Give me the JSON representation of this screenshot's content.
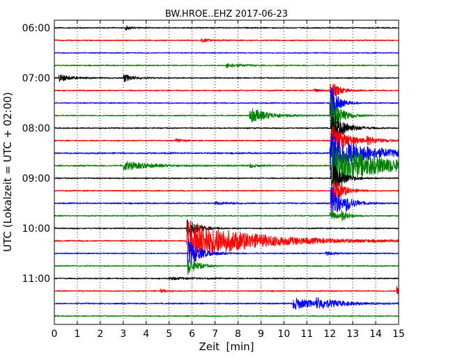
{
  "chart_data": {
    "type": "line",
    "title": "BW.HROE..EHZ 2017-06-23",
    "xlabel": "Zeit  [min]",
    "ylabel": "UTC (Lokalzeit = UTC + 02:00)",
    "xlim": [
      0,
      15
    ],
    "x_ticks": [
      "0",
      "1",
      "2",
      "3",
      "4",
      "5",
      "6",
      "7",
      "8",
      "9",
      "10",
      "11",
      "12",
      "13",
      "14",
      "15"
    ],
    "y_ticks": [
      "06:00",
      "07:00",
      "08:00",
      "09:00",
      "10:00",
      "11:00"
    ],
    "grid": true,
    "traces_per_hour": 4,
    "trace_colors": [
      "#000000",
      "#ff0000",
      "#0000ff",
      "#008000"
    ],
    "traces": [
      {
        "start": "06:00",
        "noise": 0.35,
        "events": [
          {
            "t": 3.1,
            "amp": 1.2,
            "dur": 0.3
          }
        ]
      },
      {
        "start": "06:15",
        "noise": 0.35,
        "events": [
          {
            "t": 6.4,
            "amp": 1.0,
            "dur": 0.5
          }
        ]
      },
      {
        "start": "06:30",
        "noise": 0.3,
        "events": []
      },
      {
        "start": "06:45",
        "noise": 0.35,
        "events": [
          {
            "t": 7.5,
            "amp": 1.6,
            "dur": 0.6
          }
        ]
      },
      {
        "start": "07:00",
        "noise": 0.35,
        "events": [
          {
            "t": 0.2,
            "amp": 2.4,
            "dur": 0.5
          },
          {
            "t": 3.0,
            "amp": 2.6,
            "dur": 0.4
          }
        ]
      },
      {
        "start": "07:15",
        "noise": 0.35,
        "events": [
          {
            "t": 11.3,
            "amp": 1.0,
            "dur": 0.3
          },
          {
            "t": 12.0,
            "amp": 7.0,
            "dur": 0.35
          }
        ]
      },
      {
        "start": "07:30",
        "noise": 0.35,
        "events": [
          {
            "t": 12.0,
            "amp": 14.0,
            "dur": 0.3
          }
        ]
      },
      {
        "start": "07:45",
        "noise": 0.35,
        "events": [
          {
            "t": 8.5,
            "amp": 5.0,
            "dur": 0.8
          },
          {
            "t": 12.05,
            "amp": 12.0,
            "dur": 0.4
          }
        ]
      },
      {
        "start": "08:00",
        "noise": 0.35,
        "events": [
          {
            "t": 12.05,
            "amp": 12.0,
            "dur": 0.5
          }
        ]
      },
      {
        "start": "08:15",
        "noise": 0.35,
        "events": [
          {
            "t": 5.3,
            "amp": 1.0,
            "dur": 0.3
          },
          {
            "t": 12.05,
            "amp": 12.0,
            "dur": 0.6
          },
          {
            "t": 13.6,
            "amp": 2.0,
            "dur": 0.6
          }
        ]
      },
      {
        "start": "08:30",
        "noise": 0.45,
        "events": [
          {
            "t": 12.0,
            "amp": 14.0,
            "dur": 1.4
          }
        ]
      },
      {
        "start": "08:45",
        "noise": 0.45,
        "events": [
          {
            "t": 3.0,
            "amp": 3.0,
            "dur": 1.0
          },
          {
            "t": 8.5,
            "amp": 1.2,
            "dur": 0.3
          },
          {
            "t": 12.1,
            "amp": 14.0,
            "dur": 2.0
          }
        ]
      },
      {
        "start": "09:00",
        "noise": 0.35,
        "events": [
          {
            "t": 12.05,
            "amp": 14.0,
            "dur": 0.4
          }
        ]
      },
      {
        "start": "09:15",
        "noise": 0.35,
        "events": [
          {
            "t": 12.05,
            "amp": 12.0,
            "dur": 0.4
          }
        ]
      },
      {
        "start": "09:30",
        "noise": 0.4,
        "events": [
          {
            "t": 7.0,
            "amp": 0.8,
            "dur": 0.8
          },
          {
            "t": 12.05,
            "amp": 12.0,
            "dur": 0.4
          },
          {
            "t": 12.7,
            "amp": 3.0,
            "dur": 0.4
          }
        ]
      },
      {
        "start": "09:45",
        "noise": 0.35,
        "events": [
          {
            "t": 12.0,
            "amp": 4.0,
            "dur": 0.3
          },
          {
            "t": 12.5,
            "amp": 3.0,
            "dur": 0.3
          }
        ]
      },
      {
        "start": "10:00",
        "noise": 0.35,
        "events": [
          {
            "t": 5.75,
            "amp": 8.0,
            "dur": 0.4
          }
        ]
      },
      {
        "start": "10:15",
        "noise": 0.4,
        "events": [
          {
            "t": 5.75,
            "amp": 14.0,
            "dur": 2.5
          }
        ]
      },
      {
        "start": "10:30",
        "noise": 0.35,
        "events": [
          {
            "t": 5.8,
            "amp": 10.0,
            "dur": 0.5
          },
          {
            "t": 11.8,
            "amp": 1.2,
            "dur": 0.4
          }
        ]
      },
      {
        "start": "10:45",
        "noise": 0.35,
        "events": [
          {
            "t": 5.8,
            "amp": 6.0,
            "dur": 0.4
          }
        ]
      },
      {
        "start": "11:00",
        "noise": 0.35,
        "events": [
          {
            "t": 5.0,
            "amp": 0.8,
            "dur": 1.0
          }
        ]
      },
      {
        "start": "11:15",
        "noise": 0.35,
        "events": [
          {
            "t": 4.6,
            "amp": 1.0,
            "dur": 0.3
          },
          {
            "t": 14.9,
            "amp": 3.5,
            "dur": 0.5
          }
        ]
      },
      {
        "start": "11:30",
        "noise": 0.4,
        "events": [
          {
            "t": 10.4,
            "amp": 3.8,
            "dur": 1.0
          },
          {
            "t": 11.4,
            "amp": 2.5,
            "dur": 1.0
          }
        ]
      },
      {
        "start": "11:45",
        "noise": 0.35,
        "events": []
      }
    ]
  }
}
